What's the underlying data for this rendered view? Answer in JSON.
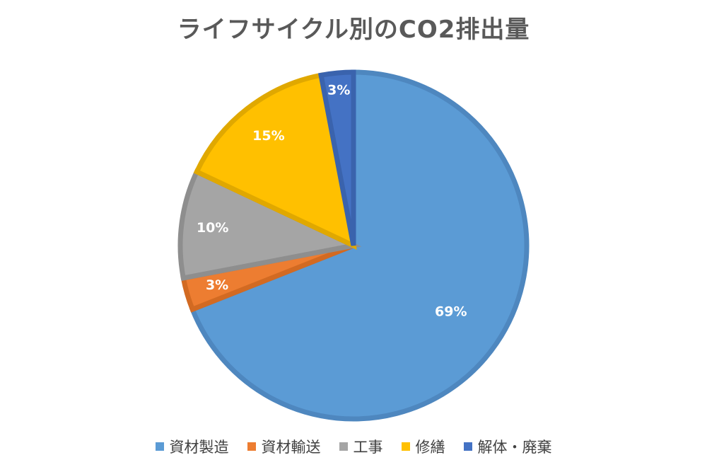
{
  "chart_data": {
    "type": "pie",
    "title": "ライフサイクル別のCO2排出量",
    "categories": [
      "資材製造",
      "資材輸送",
      "工事",
      "修繕",
      "解体・廃棄"
    ],
    "values": [
      69,
      3,
      10,
      15,
      3
    ],
    "data_labels": [
      "69%",
      "3%",
      "10%",
      "15%",
      "3%"
    ],
    "colors": [
      "#5B9BD5",
      "#ED7D31",
      "#A5A5A5",
      "#FFC000",
      "#4472C4"
    ],
    "border_colors": [
      "#4E87BF",
      "#D26A22",
      "#8E8E8E",
      "#E0A800",
      "#3A63AD"
    ],
    "start_angle_deg": 0,
    "direction": "clockwise",
    "legend_position": "bottom"
  }
}
